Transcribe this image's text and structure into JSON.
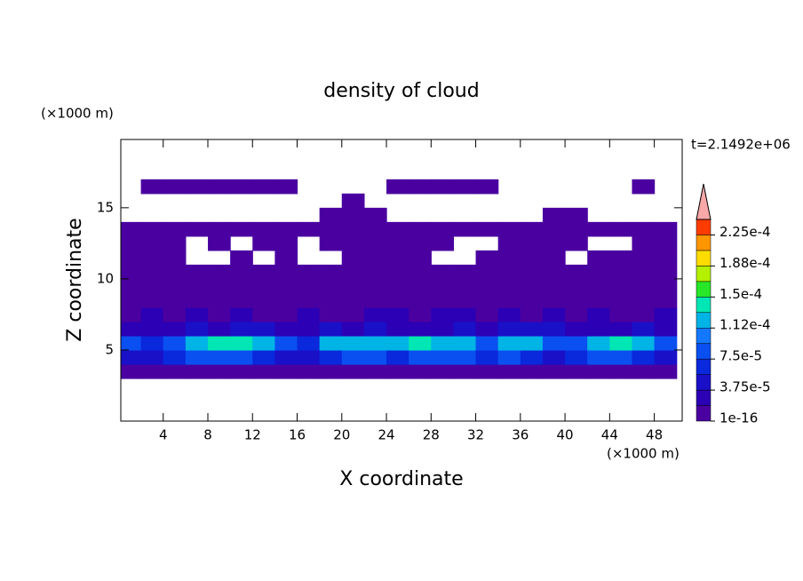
{
  "chart_data": {
    "type": "contour",
    "title": "density of cloud",
    "xlabel": "X coordinate",
    "ylabel": "Z coordinate",
    "xunit": "(×1000 m)",
    "yunit": "(×1000 m)",
    "annotation": "t=2.1492e+06",
    "xlim": [
      0.2,
      50.5
    ],
    "ylim": [
      0,
      19.8
    ],
    "xticks": [
      4,
      8,
      12,
      16,
      20,
      24,
      28,
      32,
      36,
      40,
      44,
      48
    ],
    "yticks": [
      5,
      10,
      15
    ],
    "x": [
      1,
      3,
      5,
      7,
      9,
      11,
      13,
      15,
      17,
      19,
      21,
      23,
      25,
      27,
      29,
      31,
      33,
      35,
      37,
      39,
      41,
      43,
      45,
      47,
      49
    ],
    "z": [
      3.5,
      4.5,
      5.5,
      6.5,
      7.5,
      8.5,
      9.5,
      10.5,
      11.5,
      12.5,
      13.5,
      14.5,
      15.5,
      16.5
    ],
    "values": [
      [
        2e-06,
        2e-06,
        2e-06,
        2e-06,
        2e-06,
        2e-06,
        2e-06,
        2e-06,
        2e-06,
        2e-06,
        2e-06,
        2e-06,
        2e-06,
        2e-06,
        2e-06,
        2e-06,
        2e-06,
        2e-06,
        2e-06,
        2e-06,
        2e-06,
        2e-06,
        2e-06,
        2e-06,
        2e-06
      ],
      [
        4.5e-05,
        4.5e-05,
        6.5e-05,
        8.5e-05,
        8.5e-05,
        8.5e-05,
        6.5e-05,
        4.5e-05,
        4.5e-05,
        6.5e-05,
        8.5e-05,
        8.5e-05,
        6.5e-05,
        8.5e-05,
        8.5e-05,
        8.5e-05,
        6.5e-05,
        8.5e-05,
        6.5e-05,
        4.5e-05,
        6.5e-05,
        8.5e-05,
        8.5e-05,
        6.5e-05,
        4.5e-05
      ],
      [
        8.5e-05,
        6.5e-05,
        8.5e-05,
        0.00012,
        0.000145,
        0.000145,
        0.00012,
        8.5e-05,
        6.5e-05,
        0.00012,
        0.00012,
        0.00012,
        0.00012,
        0.000145,
        0.00012,
        0.00012,
        8.5e-05,
        0.00012,
        0.00012,
        8.5e-05,
        8.5e-05,
        0.00012,
        0.000145,
        0.00012,
        8.5e-05
      ],
      [
        2.5e-05,
        2.5e-05,
        2.5e-05,
        4.5e-05,
        2.5e-05,
        4.5e-05,
        4.5e-05,
        2.5e-05,
        2.5e-05,
        4.5e-05,
        2.5e-05,
        4.5e-05,
        2.5e-05,
        2.5e-05,
        2.5e-05,
        4.5e-05,
        2.5e-05,
        4.5e-05,
        4.5e-05,
        4.5e-05,
        2.5e-05,
        2.5e-05,
        2.5e-05,
        4.5e-05,
        2.5e-05
      ],
      [
        1e-05,
        2.5e-05,
        1e-05,
        2.5e-05,
        1e-05,
        2.5e-05,
        1e-05,
        1e-05,
        2.5e-05,
        1e-05,
        1e-05,
        2.5e-05,
        2.5e-05,
        1e-05,
        2.5e-05,
        2.5e-05,
        1e-05,
        2.5e-05,
        1e-05,
        2.5e-05,
        1e-05,
        2.5e-05,
        1e-05,
        1e-05,
        2.5e-05
      ],
      [
        1e-05,
        2e-06,
        1e-05,
        1e-05,
        1e-05,
        2e-06,
        1e-05,
        1e-05,
        1e-05,
        2e-06,
        1e-05,
        1e-05,
        1e-05,
        1e-05,
        2e-06,
        1e-05,
        1e-05,
        1e-05,
        2e-06,
        1e-05,
        1e-05,
        1e-05,
        1e-05,
        2e-06,
        1e-05
      ],
      [
        2e-06,
        2e-06,
        1e-05,
        2e-06,
        2e-06,
        1e-05,
        2e-06,
        2e-06,
        1e-05,
        2e-06,
        2e-06,
        1e-05,
        2e-06,
        1e-05,
        2e-06,
        2e-06,
        1e-05,
        2e-06,
        2e-06,
        2e-06,
        2e-06,
        1e-05,
        2e-06,
        2e-06,
        2e-06
      ],
      [
        2e-06,
        2e-06,
        2e-06,
        2e-06,
        2e-06,
        2e-06,
        2e-06,
        2e-06,
        2e-06,
        2e-06,
        2e-06,
        2e-06,
        2e-06,
        2e-06,
        2e-06,
        2e-06,
        2e-06,
        2e-06,
        2e-06,
        2e-06,
        2e-06,
        2e-06,
        2e-06,
        2e-06,
        2e-06
      ],
      [
        2e-06,
        2e-06,
        2e-06,
        null,
        null,
        2e-06,
        null,
        2e-06,
        null,
        null,
        2e-06,
        2e-06,
        2e-06,
        2e-06,
        null,
        null,
        2e-06,
        2e-06,
        2e-06,
        2e-06,
        null,
        2e-06,
        2e-06,
        2e-06,
        2e-06
      ],
      [
        2e-06,
        2e-06,
        2e-06,
        null,
        2e-06,
        null,
        2e-06,
        2e-06,
        null,
        2e-06,
        2e-06,
        2e-06,
        2e-06,
        2e-06,
        2e-06,
        null,
        null,
        2e-06,
        2e-06,
        2e-06,
        2e-06,
        null,
        null,
        2e-06,
        2e-06
      ],
      [
        2e-06,
        2e-06,
        2e-06,
        2e-06,
        2e-06,
        2e-06,
        2e-06,
        2e-06,
        2e-06,
        2e-06,
        2e-06,
        2e-06,
        2e-06,
        2e-06,
        2e-06,
        2e-06,
        2e-06,
        2e-06,
        2e-06,
        2e-06,
        2e-06,
        2e-06,
        2e-06,
        2e-06,
        2e-06
      ],
      [
        null,
        null,
        null,
        null,
        null,
        null,
        null,
        null,
        null,
        2e-06,
        2e-06,
        2e-06,
        null,
        null,
        null,
        null,
        null,
        null,
        null,
        2e-06,
        2e-06,
        null,
        null,
        null,
        null
      ],
      [
        null,
        null,
        null,
        null,
        null,
        null,
        null,
        null,
        null,
        null,
        2e-06,
        null,
        null,
        null,
        null,
        null,
        null,
        null,
        null,
        null,
        null,
        null,
        null,
        null,
        null
      ],
      [
        null,
        2e-06,
        2e-06,
        2e-06,
        2e-06,
        2e-06,
        2e-06,
        2e-06,
        null,
        null,
        null,
        null,
        2e-06,
        2e-06,
        2e-06,
        2e-06,
        2e-06,
        null,
        null,
        null,
        null,
        null,
        null,
        2e-06,
        null
      ]
    ],
    "colorbar": {
      "levels": [
        1e-16,
        1.875e-05,
        3.75e-05,
        5.625e-05,
        7.5e-05,
        9.375e-05,
        0.0001125,
        0.00013125,
        0.00015,
        0.00016875,
        0.0001875,
        0.00020625,
        0.000225,
        0.00024375
      ],
      "ticks": [
        1e-16,
        {
          "value": 3.75e-05,
          "label": "3.75e-5"
        },
        {
          "value": 7.5e-05,
          "label": "7.5e-5"
        },
        {
          "value": 0.0001125,
          "label": "1.12e-4"
        },
        {
          "value": 0.00015,
          "label": "1.5e-4"
        },
        {
          "value": 0.0001875,
          "label": "1.88e-4"
        },
        {
          "value": 0.000225,
          "label": "2.25e-4"
        }
      ],
      "colors": [
        "#4a00a0",
        "#2c00b4",
        "#1a10c8",
        "#0a28dc",
        "#0a50f0",
        "#1478ff",
        "#00b4e6",
        "#00e6b4",
        "#28e628",
        "#b4f000",
        "#ffdc00",
        "#ff9600",
        "#ff3c00"
      ],
      "extend_color": "#f8a8a8"
    }
  }
}
